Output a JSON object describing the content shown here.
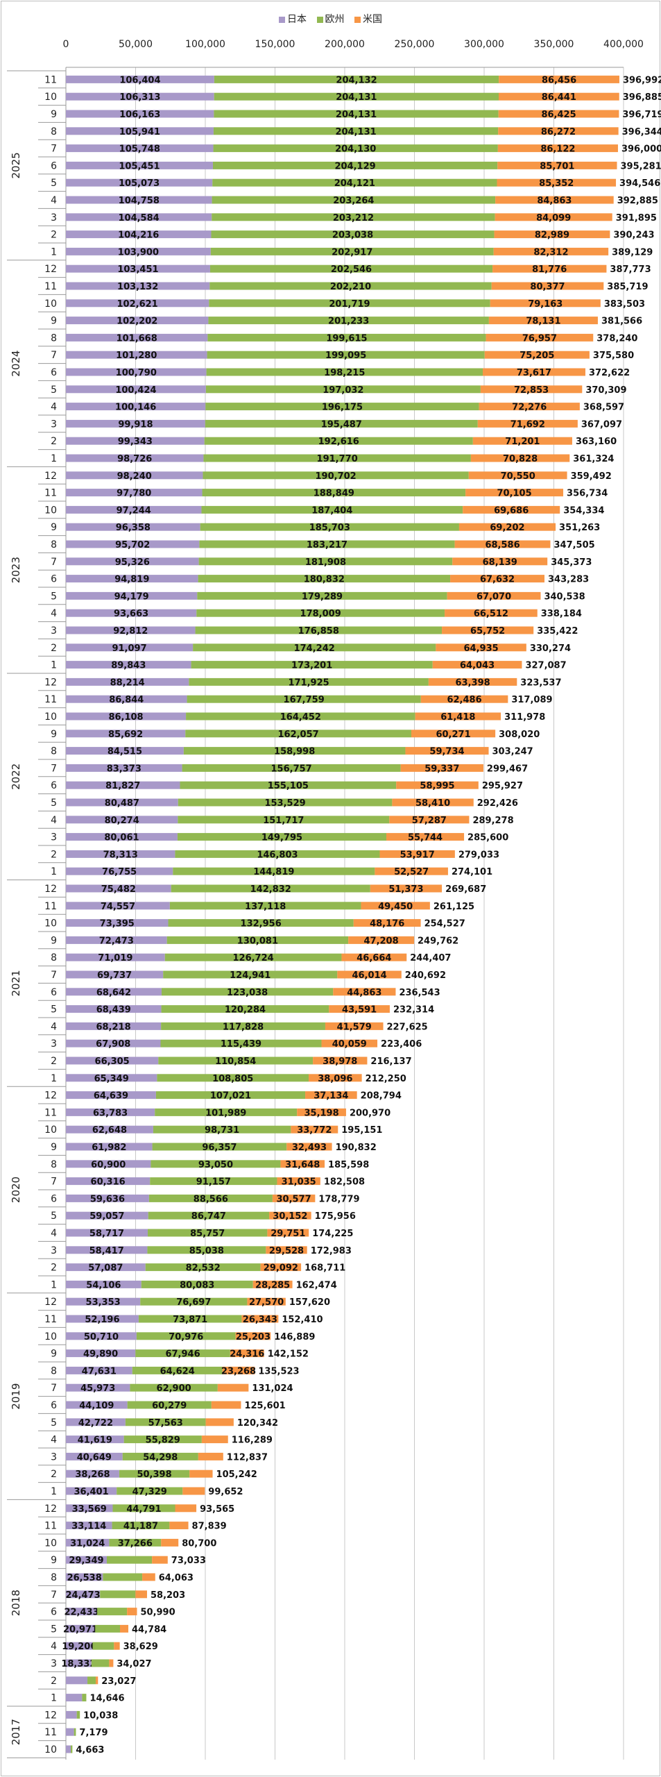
{
  "chart_data": {
    "type": "bar",
    "orientation": "horizontal",
    "stacked": true,
    "legend_position": "top",
    "grid": true,
    "xlim": [
      0,
      400000
    ],
    "x_ticks": [
      "0",
      "50,000",
      "100,000",
      "150,000",
      "200,000",
      "250,000",
      "300,000",
      "350,000",
      "400,000"
    ],
    "series": [
      {
        "key": "jp",
        "name": "日本",
        "color": "#a899c9"
      },
      {
        "key": "eu",
        "name": "欧州",
        "color": "#92b851"
      },
      {
        "key": "us",
        "name": "米国",
        "color": "#f79646"
      }
    ],
    "row_format": [
      "month",
      "jp",
      "eu",
      "us",
      "total",
      "labeled_segments"
    ],
    "groups": [
      {
        "year": "2025",
        "rows": [
          [
            11,
            106404,
            204132,
            86456,
            396992,
            "JEU"
          ],
          [
            10,
            106313,
            204131,
            86441,
            396885,
            "JEU"
          ],
          [
            9,
            106163,
            204131,
            86425,
            396719,
            "JEU"
          ],
          [
            8,
            105941,
            204131,
            86272,
            396344,
            "JEU"
          ],
          [
            7,
            105748,
            204130,
            86122,
            396000,
            "JEU"
          ],
          [
            6,
            105451,
            204129,
            85701,
            395281,
            "JEU"
          ],
          [
            5,
            105073,
            204121,
            85352,
            394546,
            "JEU"
          ],
          [
            4,
            104758,
            203264,
            84863,
            392885,
            "JEU"
          ],
          [
            3,
            104584,
            203212,
            84099,
            391895,
            "JEU"
          ],
          [
            2,
            104216,
            203038,
            82989,
            390243,
            "JEU"
          ],
          [
            1,
            103900,
            202917,
            82312,
            389129,
            "JEU"
          ]
        ]
      },
      {
        "year": "2024",
        "rows": [
          [
            12,
            103451,
            202546,
            81776,
            387773,
            "JEU"
          ],
          [
            11,
            103132,
            202210,
            80377,
            385719,
            "JEU"
          ],
          [
            10,
            102621,
            201719,
            79163,
            383503,
            "JEU"
          ],
          [
            9,
            102202,
            201233,
            78131,
            381566,
            "JEU"
          ],
          [
            8,
            101668,
            199615,
            76957,
            378240,
            "JEU"
          ],
          [
            7,
            101280,
            199095,
            75205,
            375580,
            "JEU"
          ],
          [
            6,
            100790,
            198215,
            73617,
            372622,
            "JEU"
          ],
          [
            5,
            100424,
            197032,
            72853,
            370309,
            "JEU"
          ],
          [
            4,
            100146,
            196175,
            72276,
            368597,
            "JEU"
          ],
          [
            3,
            99918,
            195487,
            71692,
            367097,
            "JEU"
          ],
          [
            2,
            99343,
            192616,
            71201,
            363160,
            "JEU"
          ],
          [
            1,
            98726,
            191770,
            70828,
            361324,
            "JEU"
          ]
        ]
      },
      {
        "year": "2023",
        "rows": [
          [
            12,
            98240,
            190702,
            70550,
            359492,
            "JEU"
          ],
          [
            11,
            97780,
            188849,
            70105,
            356734,
            "JEU"
          ],
          [
            10,
            97244,
            187404,
            69686,
            354334,
            "JEU"
          ],
          [
            9,
            96358,
            185703,
            69202,
            351263,
            "JEU"
          ],
          [
            8,
            95702,
            183217,
            68586,
            347505,
            "JEU"
          ],
          [
            7,
            95326,
            181908,
            68139,
            345373,
            "JEU"
          ],
          [
            6,
            94819,
            180832,
            67632,
            343283,
            "JEU"
          ],
          [
            5,
            94179,
            179289,
            67070,
            340538,
            "JEU"
          ],
          [
            4,
            93663,
            178009,
            66512,
            338184,
            "JEU"
          ],
          [
            3,
            92812,
            176858,
            65752,
            335422,
            "JEU"
          ],
          [
            2,
            91097,
            174242,
            64935,
            330274,
            "JEU"
          ],
          [
            1,
            89843,
            173201,
            64043,
            327087,
            "JEU"
          ]
        ]
      },
      {
        "year": "2022",
        "rows": [
          [
            12,
            88214,
            171925,
            63398,
            323537,
            "JEU"
          ],
          [
            11,
            86844,
            167759,
            62486,
            317089,
            "JEU"
          ],
          [
            10,
            86108,
            164452,
            61418,
            311978,
            "JEU"
          ],
          [
            9,
            85692,
            162057,
            60271,
            308020,
            "JEU"
          ],
          [
            8,
            84515,
            158998,
            59734,
            303247,
            "JEU"
          ],
          [
            7,
            83373,
            156757,
            59337,
            299467,
            "JEU"
          ],
          [
            6,
            81827,
            155105,
            58995,
            295927,
            "JEU"
          ],
          [
            5,
            80487,
            153529,
            58410,
            292426,
            "JEU"
          ],
          [
            4,
            80274,
            151717,
            57287,
            289278,
            "JEU"
          ],
          [
            3,
            80061,
            149795,
            55744,
            285600,
            "JEU"
          ],
          [
            2,
            78313,
            146803,
            53917,
            279033,
            "JEU"
          ],
          [
            1,
            76755,
            144819,
            52527,
            274101,
            "JEU"
          ]
        ]
      },
      {
        "year": "2021",
        "rows": [
          [
            12,
            75482,
            142832,
            51373,
            269687,
            "JEU"
          ],
          [
            11,
            74557,
            137118,
            49450,
            261125,
            "JEU"
          ],
          [
            10,
            73395,
            132956,
            48176,
            254527,
            "JEU"
          ],
          [
            9,
            72473,
            130081,
            47208,
            249762,
            "JEU"
          ],
          [
            8,
            71019,
            126724,
            46664,
            244407,
            "JEU"
          ],
          [
            7,
            69737,
            124941,
            46014,
            240692,
            "JEU"
          ],
          [
            6,
            68642,
            123038,
            44863,
            236543,
            "JEU"
          ],
          [
            5,
            68439,
            120284,
            43591,
            232314,
            "JEU"
          ],
          [
            4,
            68218,
            117828,
            41579,
            227625,
            "JEU"
          ],
          [
            3,
            67908,
            115439,
            40059,
            223406,
            "JEU"
          ],
          [
            2,
            66305,
            110854,
            38978,
            216137,
            "JEU"
          ],
          [
            1,
            65349,
            108805,
            38096,
            212250,
            "JEU"
          ]
        ]
      },
      {
        "year": "2020",
        "rows": [
          [
            12,
            64639,
            107021,
            37134,
            208794,
            "JEU"
          ],
          [
            11,
            63783,
            101989,
            35198,
            200970,
            "JEU"
          ],
          [
            10,
            62648,
            98731,
            33772,
            195151,
            "JEU"
          ],
          [
            9,
            61982,
            96357,
            32493,
            190832,
            "JEU"
          ],
          [
            8,
            60900,
            93050,
            31648,
            185598,
            "JEU"
          ],
          [
            7,
            60316,
            91157,
            31035,
            182508,
            "JEU"
          ],
          [
            6,
            59636,
            88566,
            30577,
            178779,
            "JEU"
          ],
          [
            5,
            59057,
            86747,
            30152,
            175956,
            "JEU"
          ],
          [
            4,
            58717,
            85757,
            29751,
            174225,
            "JEU"
          ],
          [
            3,
            58417,
            85038,
            29528,
            172983,
            "JEU"
          ],
          [
            2,
            57087,
            82532,
            29092,
            168711,
            "JEU"
          ],
          [
            1,
            54106,
            80083,
            28285,
            162474,
            "JEU"
          ]
        ]
      },
      {
        "year": "2019",
        "rows": [
          [
            12,
            53353,
            76697,
            27570,
            157620,
            "JEU"
          ],
          [
            11,
            52196,
            73871,
            26343,
            152410,
            "JEU"
          ],
          [
            10,
            50710,
            70976,
            25203,
            146889,
            "JEU"
          ],
          [
            9,
            49890,
            67946,
            24316,
            142152,
            "JEU"
          ],
          [
            8,
            47631,
            64624,
            23268,
            135523,
            "JEU"
          ],
          [
            7,
            45973,
            62900,
            22151,
            131024,
            "JE"
          ],
          [
            6,
            44109,
            60279,
            21213,
            125601,
            "JE"
          ],
          [
            5,
            42722,
            57563,
            20057,
            120342,
            "JE"
          ],
          [
            4,
            41619,
            55829,
            18841,
            116289,
            "JE"
          ],
          [
            3,
            40649,
            54298,
            17890,
            112837,
            "JE"
          ],
          [
            2,
            38268,
            50398,
            16576,
            105242,
            "JE"
          ],
          [
            1,
            36401,
            47329,
            15922,
            99652,
            "JE"
          ]
        ]
      },
      {
        "year": "2018",
        "rows": [
          [
            12,
            33569,
            44791,
            15205,
            93565,
            "JE"
          ],
          [
            11,
            33114,
            41187,
            13538,
            87839,
            "JE"
          ],
          [
            10,
            31024,
            37266,
            12410,
            80700,
            "JE"
          ],
          [
            9,
            29349,
            32400,
            11284,
            73033,
            "J"
          ],
          [
            8,
            26538,
            28225,
            9300,
            64063,
            "J"
          ],
          [
            7,
            24473,
            25430,
            8300,
            58203,
            "J"
          ],
          [
            6,
            22433,
            21417,
            7140,
            50990,
            "J"
          ],
          [
            5,
            20971,
            17833,
            5980,
            44784,
            "J"
          ],
          [
            4,
            19206,
            15273,
            4150,
            38629,
            "J"
          ],
          [
            3,
            18332,
            12695,
            3000,
            34027,
            "J"
          ],
          [
            2,
            15440,
            5980,
            1607,
            23027,
            ""
          ],
          [
            1,
            11620,
            3026,
            0,
            14646,
            ""
          ]
        ]
      },
      {
        "year": "2017",
        "rows": [
          [
            12,
            7800,
            2238,
            0,
            10038,
            ""
          ],
          [
            11,
            5810,
            1369,
            0,
            7179,
            ""
          ],
          [
            10,
            3490,
            1173,
            0,
            4663,
            ""
          ]
        ]
      }
    ]
  }
}
